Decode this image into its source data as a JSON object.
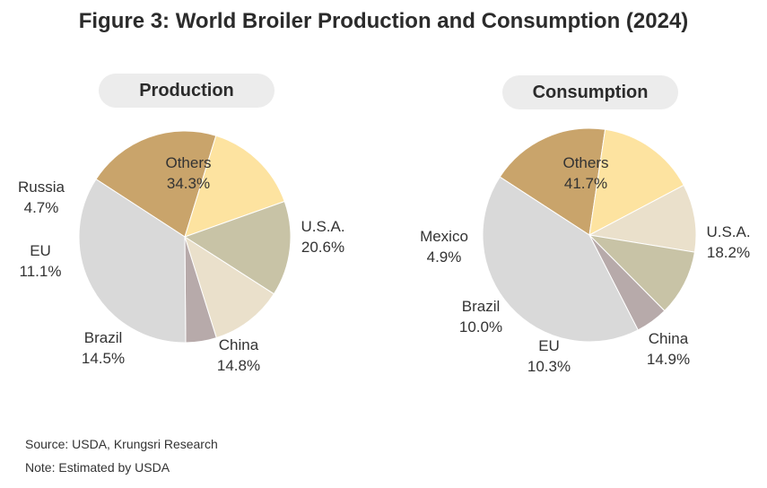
{
  "title": "Figure 3: World Broiler Production and Consumption (2024)",
  "chart_data": [
    {
      "type": "pie",
      "title": "Production",
      "slices": [
        {
          "label": "U.S.A.",
          "value": 20.6,
          "display": "20.6%",
          "color": "#c9a46b"
        },
        {
          "label": "China",
          "value": 14.8,
          "display": "14.8%",
          "color": "#fde3a0"
        },
        {
          "label": "Brazil",
          "value": 14.5,
          "display": "14.5%",
          "color": "#c8c3a6"
        },
        {
          "label": "EU",
          "value": 11.1,
          "display": "11.1%",
          "color": "#eae0cb"
        },
        {
          "label": "Russia",
          "value": 4.7,
          "display": "4.7%",
          "color": "#b7aaaa"
        },
        {
          "label": "Others",
          "value": 34.3,
          "display": "34.3%",
          "color": "#d9d9d9"
        }
      ]
    },
    {
      "type": "pie",
      "title": "Consumption",
      "slices": [
        {
          "label": "U.S.A.",
          "value": 18.2,
          "display": "18.2%",
          "color": "#c9a46b"
        },
        {
          "label": "China",
          "value": 14.9,
          "display": "14.9%",
          "color": "#fde3a0"
        },
        {
          "label": "EU",
          "value": 10.3,
          "display": "10.3%",
          "color": "#eae0cb"
        },
        {
          "label": "Brazil",
          "value": 10.0,
          "display": "10.0%",
          "color": "#c8c3a6"
        },
        {
          "label": "Mexico",
          "value": 4.9,
          "display": "4.9%",
          "color": "#b7aaaa"
        },
        {
          "label": "Others",
          "value": 41.7,
          "display": "41.7%",
          "color": "#d9d9d9"
        }
      ]
    }
  ],
  "footer": {
    "source": "Source: USDA, Krungsri Research",
    "note": "Note: Estimated by USDA"
  }
}
